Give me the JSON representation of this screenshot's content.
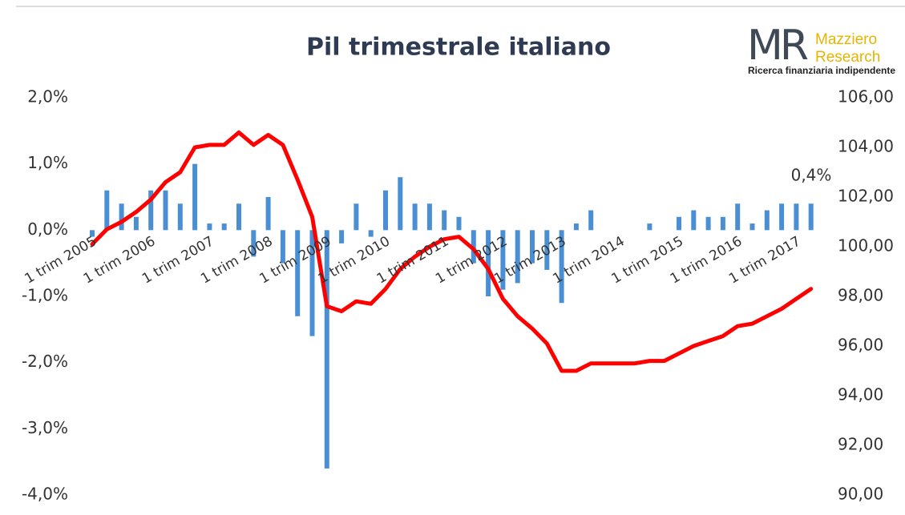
{
  "chart_data": {
    "type": "bar_line",
    "title": "Pil trimestrale italiano",
    "categories": [
      "1 trim 2005",
      null,
      null,
      null,
      "1 trim 2006",
      null,
      null,
      null,
      "1 trim 2007",
      null,
      null,
      null,
      "1 trim 2008",
      null,
      null,
      null,
      "1 trim 2009",
      null,
      null,
      null,
      "1 trim 2010",
      null,
      null,
      null,
      "1 trim 2011",
      null,
      null,
      null,
      "1 trim 2012",
      null,
      null,
      null,
      "1 trim 2013",
      null,
      null,
      null,
      "1 trim 2014",
      null,
      null,
      null,
      "1 trim 2015",
      null,
      null,
      null,
      "1 trim 2016",
      null,
      null,
      null,
      "1 trim 2017",
      null
    ],
    "series": [
      {
        "type": "bar",
        "color": "#4a8fd4",
        "values": [
          -0.1,
          0.6,
          0.4,
          0.2,
          0.6,
          0.6,
          0.4,
          1.0,
          0.1,
          0.1,
          0.4,
          -0.4,
          0.5,
          -0.5,
          -1.3,
          -1.6,
          -3.6,
          -0.2,
          0.4,
          -0.1,
          0.6,
          0.8,
          0.4,
          0.4,
          0.3,
          0.2,
          -0.5,
          -1.0,
          -0.9,
          -0.8,
          -0.5,
          -0.6,
          -1.1,
          0.1,
          0.3,
          0,
          0,
          0,
          0.1,
          0,
          0.2,
          0.3,
          0.2,
          0.2,
          0.4,
          0.1,
          0.3,
          0.4,
          0.4,
          0.4
        ]
      },
      {
        "type": "line",
        "axis": "y2",
        "color": "#ff0000",
        "values": [
          100.1,
          100.7,
          101.0,
          101.4,
          101.9,
          102.6,
          103.0,
          104.0,
          104.1,
          104.1,
          104.6,
          104.1,
          104.5,
          104.1,
          102.7,
          101.2,
          97.6,
          97.4,
          97.8,
          97.7,
          98.3,
          99.1,
          99.6,
          100.0,
          100.3,
          100.4,
          99.9,
          99.1,
          97.9,
          97.2,
          96.7,
          96.1,
          95.0,
          95.0,
          95.3,
          95.3,
          95.3,
          95.3,
          95.4,
          95.4,
          95.7,
          96.0,
          96.2,
          96.4,
          96.8,
          96.9,
          97.2,
          97.5,
          97.9,
          98.3
        ]
      }
    ],
    "ylim": [
      -4,
      2
    ],
    "yticks": [
      {
        "value": -4,
        "label": "-4,0%"
      },
      {
        "value": -3,
        "label": "-3,0%"
      },
      {
        "value": -2,
        "label": "-2,0%"
      },
      {
        "value": -1,
        "label": "-1,0%"
      },
      {
        "value": 0,
        "label": "0,0%"
      },
      {
        "value": 1,
        "label": "1,0%"
      },
      {
        "value": 2,
        "label": "2,0%"
      }
    ],
    "y2lim": [
      90,
      106
    ],
    "y2ticks": [
      {
        "value": 90,
        "label": "90,00"
      },
      {
        "value": 92,
        "label": "92,00"
      },
      {
        "value": 94,
        "label": "94,00"
      },
      {
        "value": 96,
        "label": "96,00"
      },
      {
        "value": 98,
        "label": "98,00"
      },
      {
        "value": 100,
        "label": "100,00"
      },
      {
        "value": 102,
        "label": "102,00"
      },
      {
        "value": 104,
        "label": "104,00"
      },
      {
        "value": 106,
        "label": "106,00"
      }
    ],
    "annotations": [
      {
        "text": "0,4%"
      }
    ],
    "grid": false
  },
  "logo": {
    "mark": "MR",
    "line1": "Mazziero",
    "line2": "Research",
    "tagline": "Ricerca finanziaria indipendente"
  }
}
